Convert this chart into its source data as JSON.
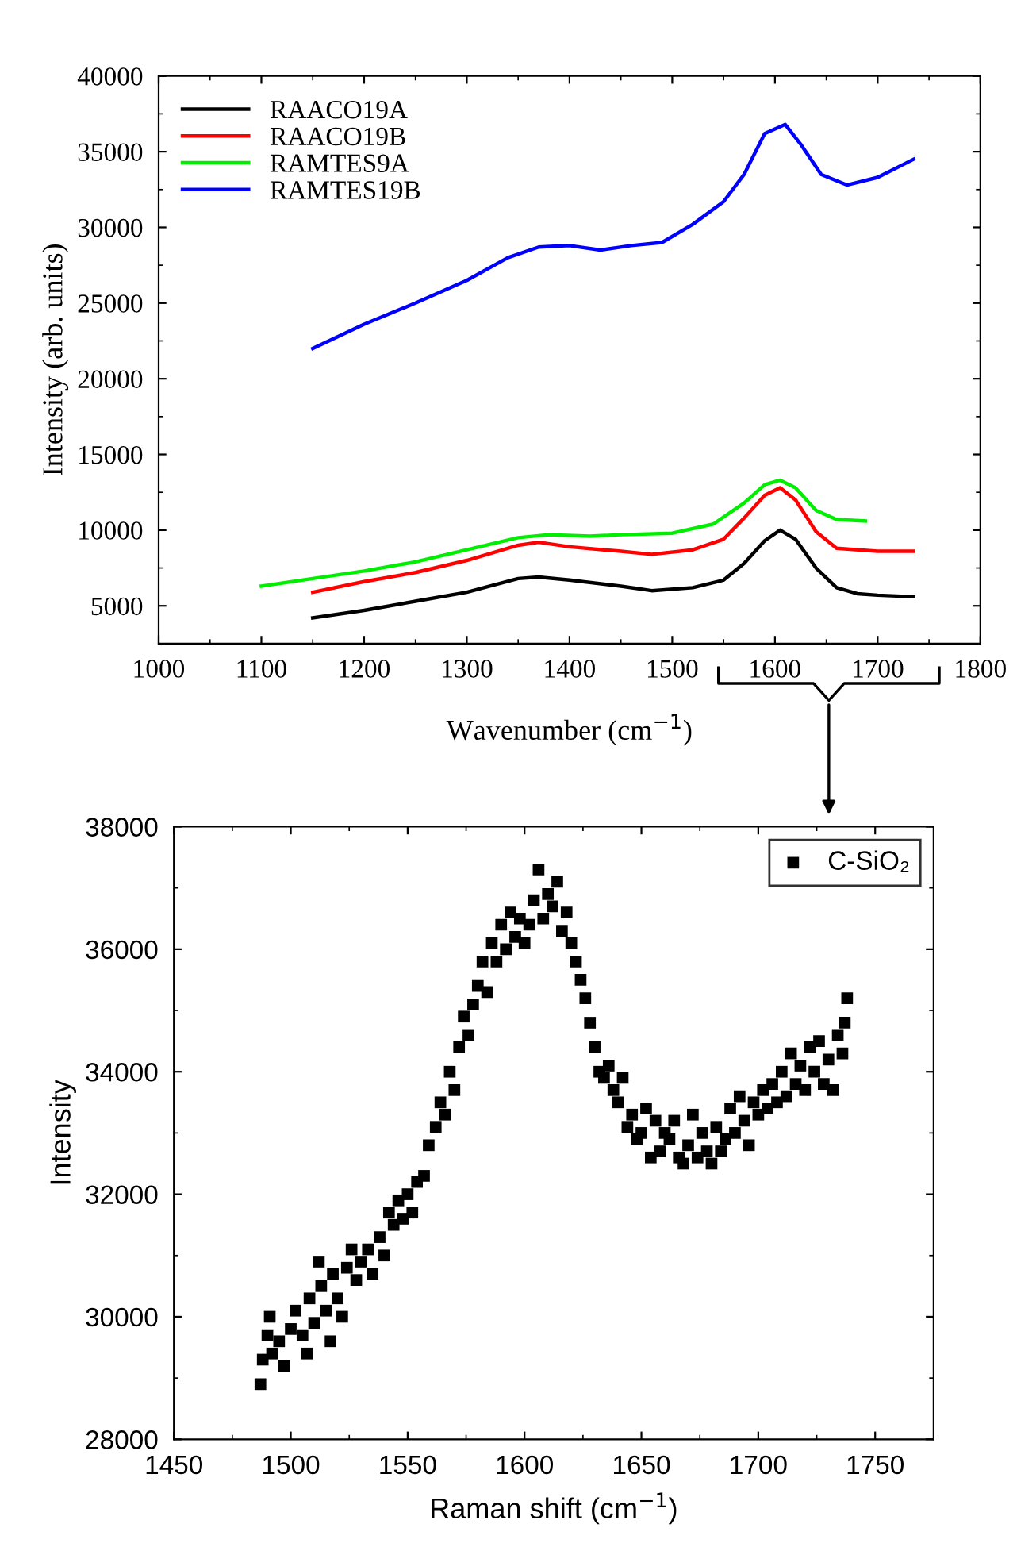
{
  "chart_data": [
    {
      "type": "line",
      "xlabel": "Wavenumber (cm$^{−1}$)",
      "ylabel": "Intensity (arb. units)",
      "xlim": [
        1000,
        1800
      ],
      "ylim": [
        2500,
        40000
      ],
      "xticks": [
        1000,
        1100,
        1200,
        1300,
        1400,
        1500,
        1600,
        1700,
        1800
      ],
      "yticks": [
        5000,
        10000,
        15000,
        20000,
        25000,
        30000,
        35000,
        40000
      ],
      "legend": "top left",
      "grid": false,
      "line_style": "solid",
      "series": [
        {
          "name": "RAACO19A",
          "color": "#000000",
          "x": [
            1150,
            1200,
            1250,
            1300,
            1350,
            1370,
            1400,
            1450,
            1480,
            1520,
            1550,
            1570,
            1590,
            1605,
            1620,
            1640,
            1660,
            1680,
            1700,
            1735
          ],
          "values": [
            4200,
            4700,
            5300,
            5900,
            6800,
            6900,
            6700,
            6300,
            6000,
            6200,
            6700,
            7800,
            9300,
            10000,
            9400,
            7500,
            6200,
            5800,
            5700,
            5600
          ]
        },
        {
          "name": "RAACO19B",
          "color": "#ff0000",
          "x": [
            1150,
            1200,
            1250,
            1300,
            1350,
            1370,
            1400,
            1450,
            1480,
            1520,
            1550,
            1570,
            1590,
            1605,
            1620,
            1640,
            1660,
            1700,
            1735
          ],
          "values": [
            5900,
            6600,
            7200,
            8000,
            9000,
            9200,
            8900,
            8600,
            8400,
            8700,
            9400,
            10800,
            12300,
            12800,
            12000,
            9900,
            8800,
            8600,
            8600
          ]
        },
        {
          "name": "RAMTES9A",
          "color": "#00ee00",
          "x": [
            1100,
            1150,
            1200,
            1250,
            1300,
            1350,
            1380,
            1420,
            1450,
            1500,
            1540,
            1570,
            1590,
            1605,
            1620,
            1640,
            1660,
            1688
          ],
          "values": [
            6300,
            6800,
            7300,
            7900,
            8700,
            9500,
            9700,
            9600,
            9700,
            9800,
            10400,
            11800,
            13000,
            13300,
            12800,
            11300,
            10700,
            10600
          ]
        },
        {
          "name": "RAMTES19B",
          "color": "#0000ff",
          "x": [
            1150,
            1200,
            1250,
            1300,
            1340,
            1370,
            1400,
            1430,
            1460,
            1490,
            1520,
            1550,
            1570,
            1590,
            1610,
            1625,
            1645,
            1670,
            1700,
            1735
          ],
          "values": [
            22000,
            23600,
            25000,
            26500,
            28000,
            28700,
            28800,
            28500,
            28800,
            29000,
            30200,
            31700,
            33500,
            36200,
            36800,
            35500,
            33500,
            32800,
            33300,
            34500
          ]
        }
      ]
    },
    {
      "type": "scatter",
      "xlabel": "Raman shift (cm$^{−1}$)",
      "ylabel": "Intensity",
      "xlim": [
        1450,
        1775
      ],
      "ylim": [
        28000,
        38000
      ],
      "xticks": [
        1450,
        1500,
        1550,
        1600,
        1650,
        1700,
        1750
      ],
      "yticks": [
        28000,
        30000,
        32000,
        34000,
        36000,
        38000
      ],
      "legend": "top right",
      "grid": false,
      "marker": "square",
      "series": [
        {
          "name": "C-SiO₂",
          "color": "#000000",
          "x": [
            1487,
            1488,
            1490,
            1491,
            1492,
            1495,
            1497,
            1500,
            1502,
            1505,
            1507,
            1508,
            1510,
            1512,
            1513,
            1515,
            1517,
            1518,
            1520,
            1522,
            1524,
            1526,
            1528,
            1530,
            1533,
            1535,
            1538,
            1540,
            1542,
            1544,
            1546,
            1548,
            1550,
            1552,
            1554,
            1557,
            1559,
            1562,
            1564,
            1566,
            1568,
            1570,
            1572,
            1574,
            1576,
            1578,
            1580,
            1582,
            1584,
            1586,
            1588,
            1590,
            1592,
            1594,
            1596,
            1598,
            1600,
            1602,
            1604,
            1606,
            1608,
            1610,
            1612,
            1614,
            1616,
            1618,
            1620,
            1622,
            1624,
            1626,
            1628,
            1630,
            1632,
            1634,
            1636,
            1638,
            1640,
            1642,
            1644,
            1646,
            1648,
            1650,
            1652,
            1654,
            1656,
            1658,
            1660,
            1662,
            1664,
            1666,
            1668,
            1670,
            1672,
            1674,
            1676,
            1678,
            1680,
            1682,
            1684,
            1686,
            1688,
            1690,
            1692,
            1694,
            1696,
            1698,
            1700,
            1702,
            1704,
            1706,
            1708,
            1710,
            1712,
            1714,
            1716,
            1718,
            1720,
            1722,
            1724,
            1726,
            1728,
            1730,
            1732,
            1734,
            1736,
            1737,
            1738
          ],
          "values": [
            28900,
            29300,
            29700,
            30000,
            29400,
            29600,
            29200,
            29800,
            30100,
            29700,
            29400,
            30300,
            29900,
            30900,
            30500,
            30100,
            29600,
            30700,
            30300,
            30000,
            30800,
            31100,
            30600,
            30900,
            31100,
            30700,
            31300,
            31000,
            31700,
            31500,
            31900,
            31600,
            32000,
            31700,
            32200,
            32300,
            32800,
            33100,
            33500,
            33300,
            34000,
            33700,
            34400,
            34900,
            34600,
            35100,
            35400,
            35800,
            35300,
            36100,
            35800,
            36400,
            36000,
            36600,
            36200,
            36500,
            36100,
            36400,
            36800,
            37300,
            36500,
            36900,
            36700,
            37100,
            36300,
            36600,
            36100,
            35800,
            35500,
            35200,
            34800,
            34400,
            34000,
            33900,
            34100,
            33700,
            33500,
            33900,
            33100,
            33300,
            32900,
            33000,
            33400,
            32600,
            33200,
            32700,
            33000,
            32900,
            33200,
            32600,
            32500,
            32800,
            33300,
            32600,
            33000,
            32700,
            32500,
            33100,
            32700,
            32900,
            33400,
            33000,
            33600,
            33200,
            32800,
            33500,
            33300,
            33700,
            33400,
            33800,
            33500,
            34000,
            33600,
            34300,
            33800,
            34100,
            33700,
            34400,
            34000,
            34500,
            33800,
            34200,
            33700,
            34600,
            34300,
            34800,
            35200
          ]
        }
      ]
    }
  ]
}
